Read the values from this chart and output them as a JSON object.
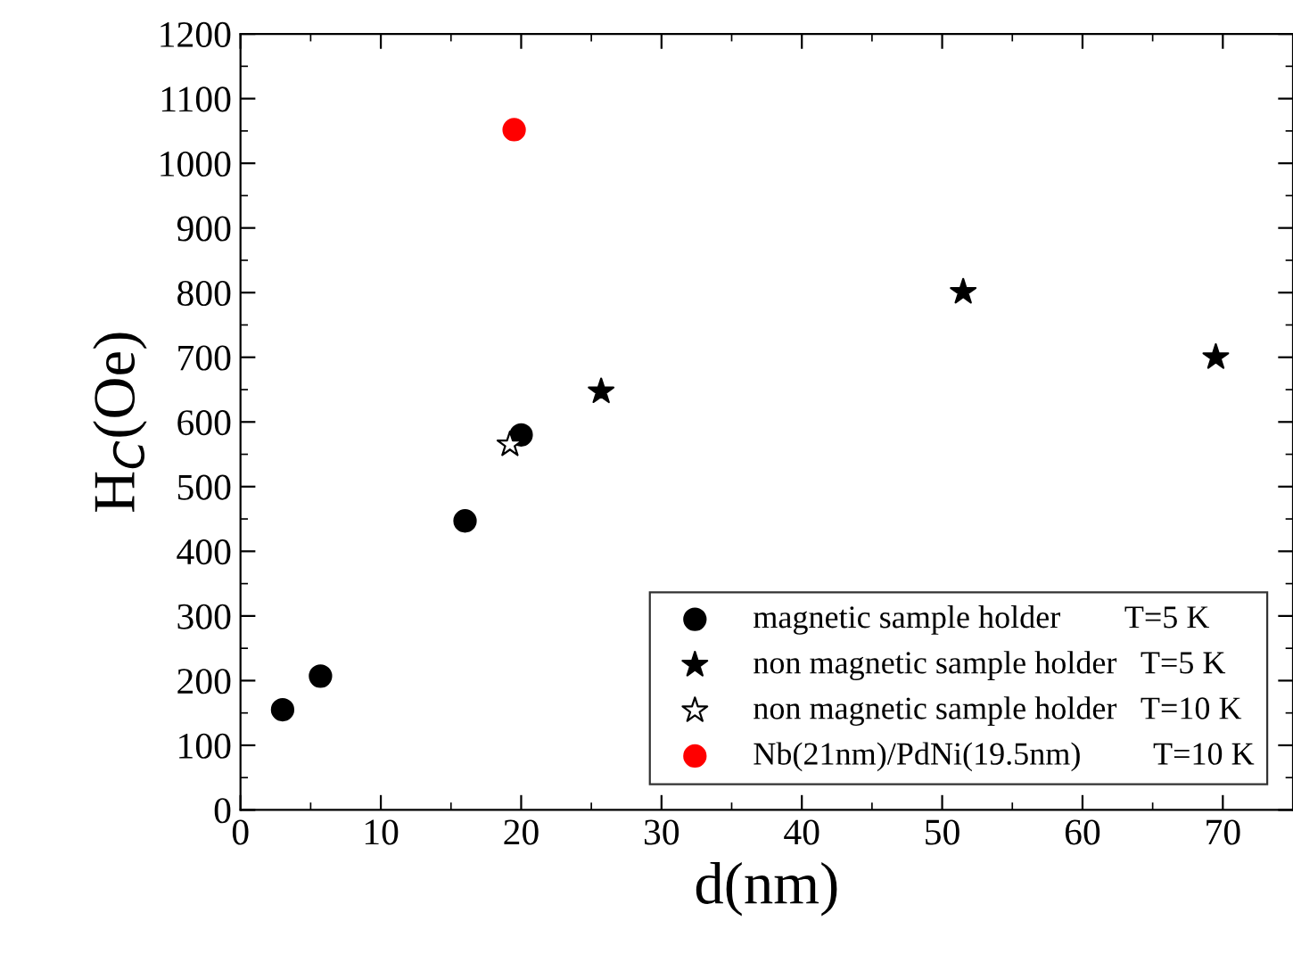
{
  "chart_data": {
    "type": "scatter",
    "xlabel": "d(nm)",
    "ylabel": "H$_{C}$(Oe)",
    "xlim": [
      0,
      75
    ],
    "xticks": [
      0,
      10,
      20,
      30,
      40,
      50,
      60,
      70
    ],
    "ylim": [
      0,
      1200
    ],
    "yticks": [
      0,
      100,
      200,
      300,
      400,
      500,
      600,
      700,
      800,
      900,
      1000,
      1100,
      1200
    ],
    "grid": false,
    "legend": "bottom right",
    "series": [
      {
        "name": "magnetic sample holder        T=5 K",
        "color": "#000000",
        "marker": "circle",
        "x": [
          3,
          5.7,
          16,
          20
        ],
        "values": [
          155,
          207,
          447,
          580
        ]
      },
      {
        "name": "non magnetic sample holder   T=5 K",
        "color": "#000000",
        "marker": "star",
        "x": [
          25.7,
          51.5,
          69.5
        ],
        "values": [
          647,
          801,
          700
        ]
      },
      {
        "name": "non magnetic sample holder   T=10 K",
        "color": "#ffffff",
        "marker": "star",
        "x": [
          19.2
        ],
        "values": [
          565
        ]
      },
      {
        "name": "Nb(21nm)/PdNi(19.5nm)         T=10 K",
        "color": "#ff0000",
        "marker": "circle",
        "x": [
          19.5
        ],
        "values": [
          1052
        ]
      }
    ]
  }
}
